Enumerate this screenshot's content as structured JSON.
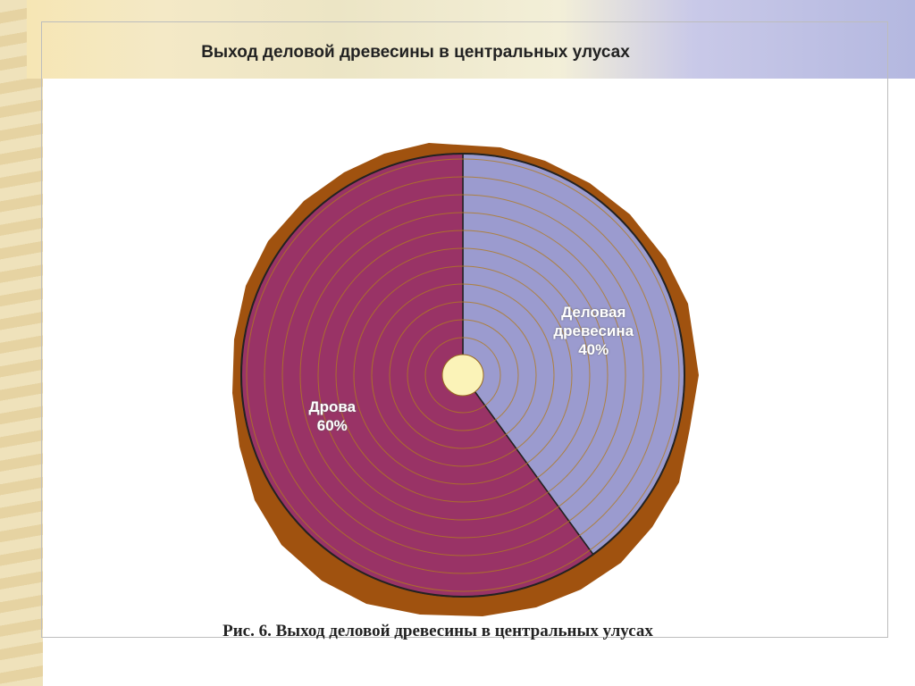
{
  "chart_data": {
    "type": "pie",
    "title": "Выход деловой древесины в центральных улусах",
    "caption": "Рис. 6. Выход деловой древесины в центральных улусах",
    "categories": [
      "Деловая древесина",
      "Дрова"
    ],
    "values": [
      40,
      60
    ],
    "value_labels": [
      "40%",
      "60%"
    ],
    "colors": [
      "#9b9bcf",
      "#993366"
    ]
  }
}
